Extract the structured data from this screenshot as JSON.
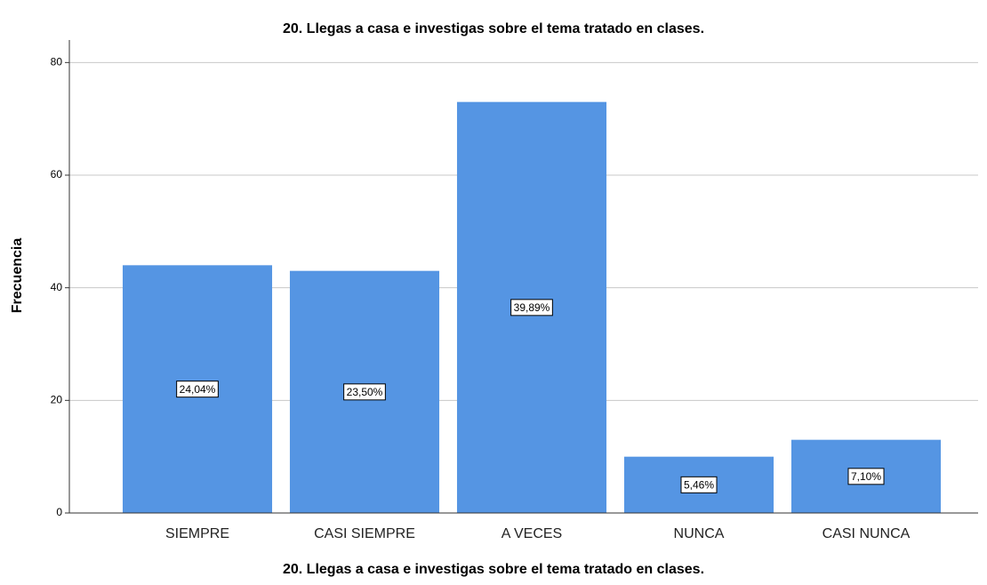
{
  "chart_data": {
    "type": "bar",
    "title": "20. Llegas a casa e investigas sobre el tema tratado en clases.",
    "x_label": "20. Llegas a casa e investigas sobre el tema tratado en clases.",
    "y_label": "Frecuencia",
    "categories": [
      "SIEMPRE",
      "CASI SIEMPRE",
      "A VECES",
      "NUNCA",
      "CASI NUNCA"
    ],
    "values": [
      44,
      43,
      73,
      10,
      13
    ],
    "percent_labels": [
      "24,04%",
      "23,50%",
      "39,89%",
      "5,46%",
      "7,10%"
    ],
    "color": "#5595e3",
    "ylim": [
      0,
      84
    ],
    "yticks": [
      0,
      20,
      40,
      60,
      80
    ],
    "grid": true
  }
}
